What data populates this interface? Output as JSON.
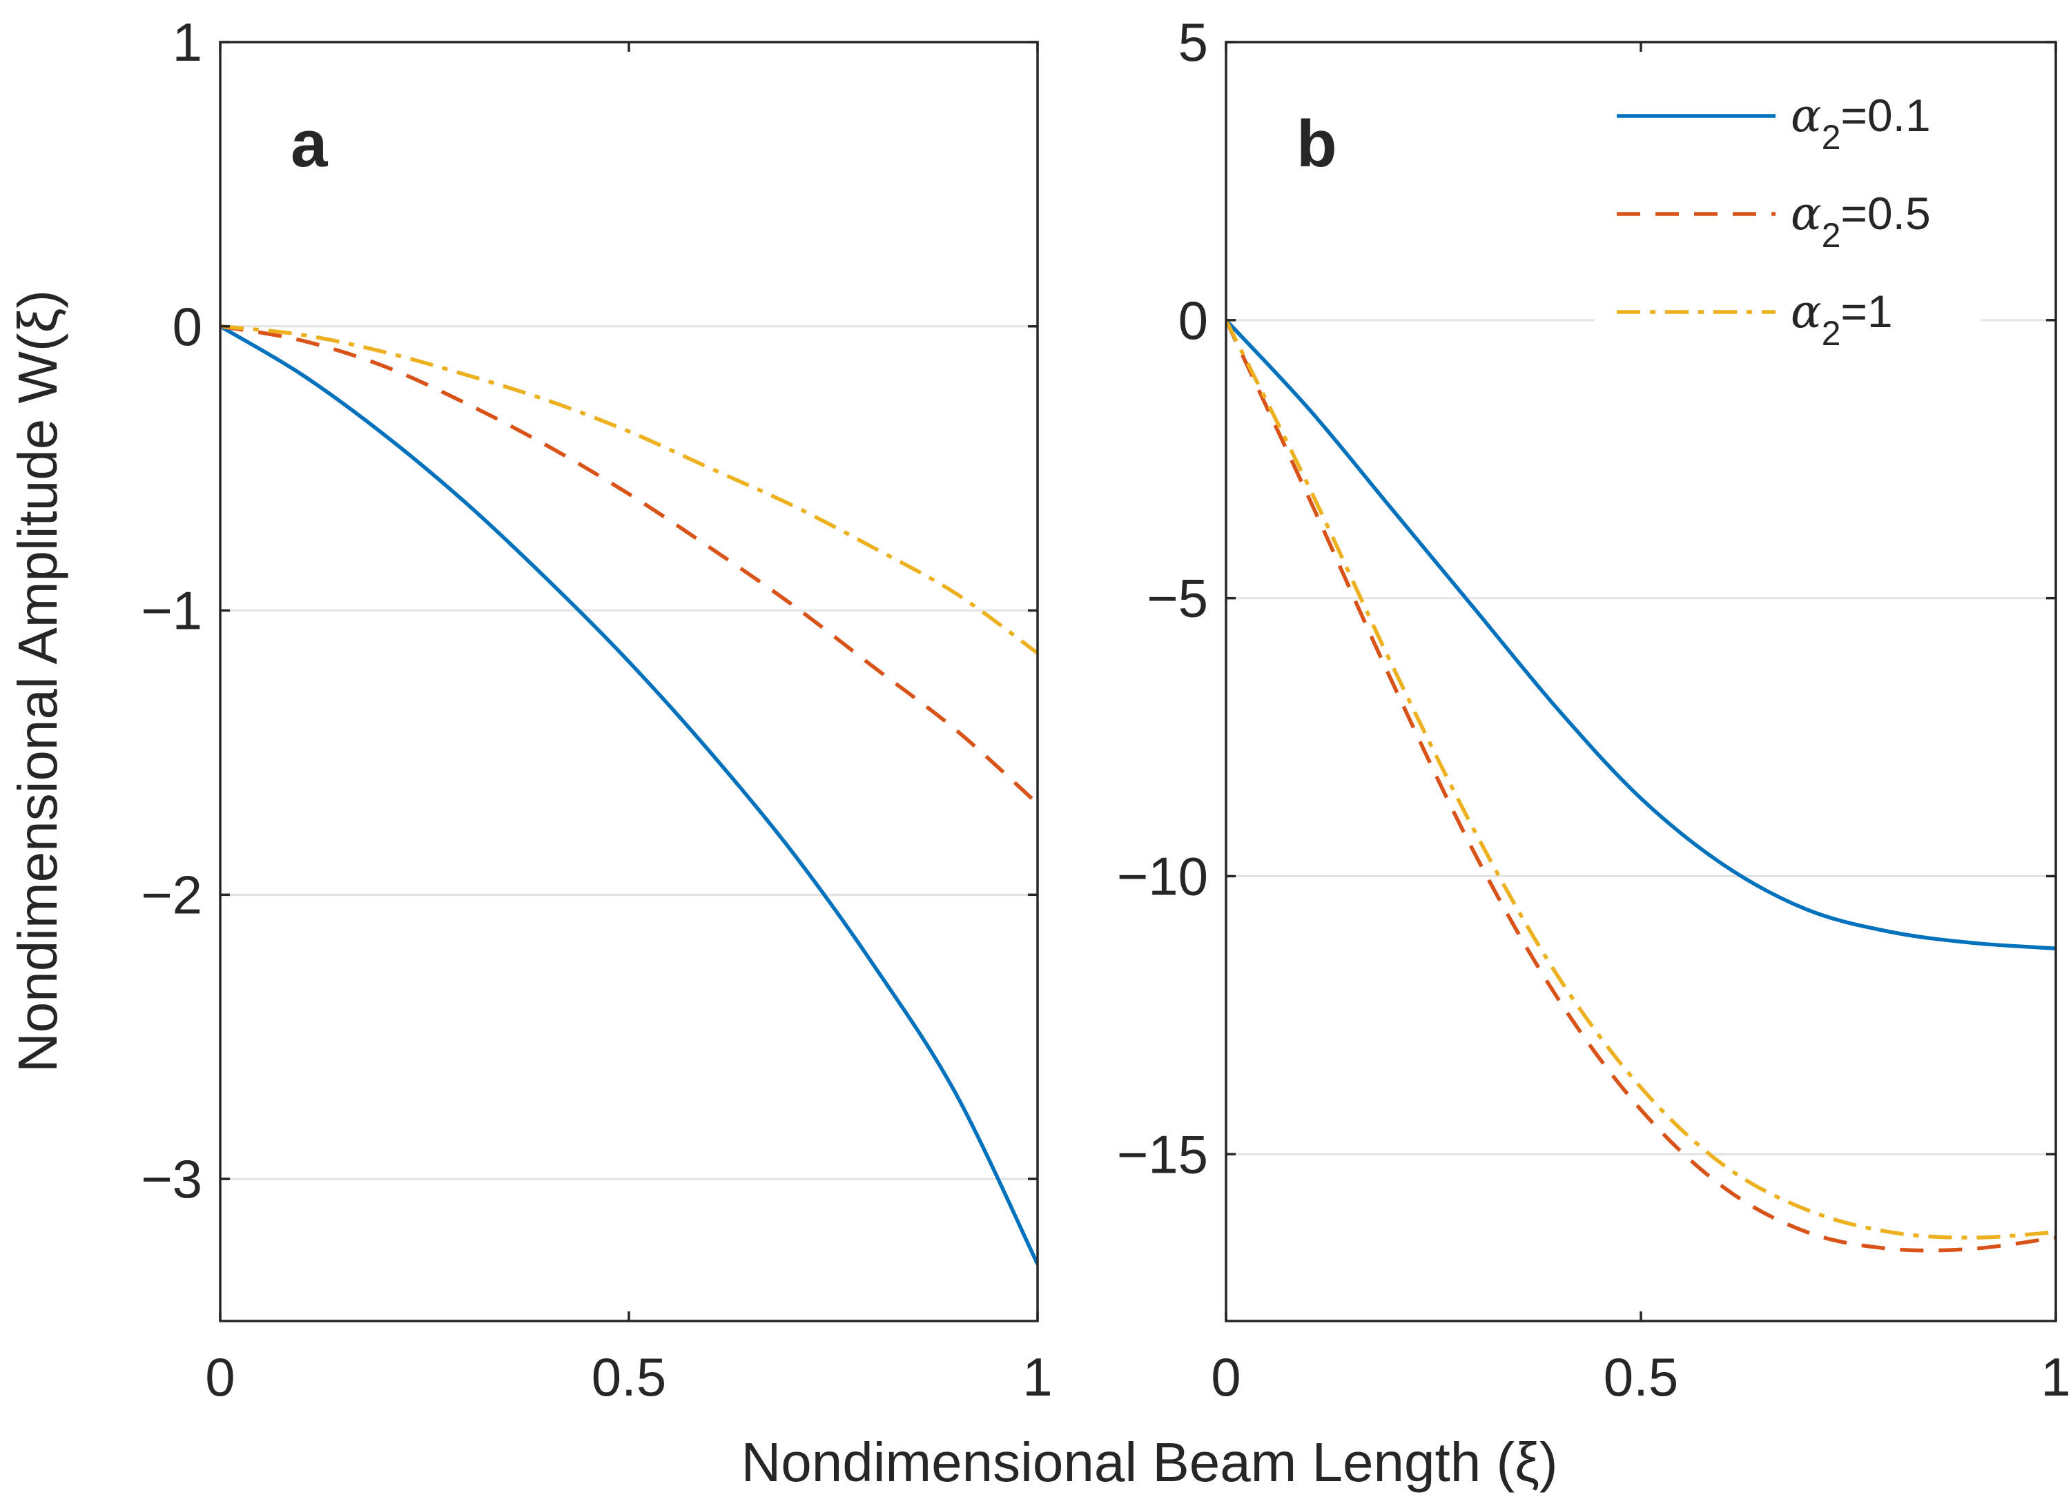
{
  "figure": {
    "ylabel": "Nondimensional Amplitude W(ξ)",
    "xlabel": "Nondimensional Beam Length (ξ)"
  },
  "legend": {
    "placement": "top-right of panel b",
    "entries": [
      {
        "symbol": "α",
        "sub": "2",
        "value": "=0.1",
        "color": "#0072BD",
        "dash": "solid"
      },
      {
        "symbol": "α",
        "sub": "2",
        "value": "=0.5",
        "color": "#D95319",
        "dash": "dashed"
      },
      {
        "symbol": "α",
        "sub": "2",
        "value": "=1",
        "color": "#EDB120",
        "dash": "dash-dot"
      }
    ]
  },
  "chart_data": [
    {
      "type": "line",
      "panel_label": "a",
      "xlim": [
        0,
        1
      ],
      "ylim": [
        -3.5,
        1
      ],
      "xticks": [
        0,
        0.5,
        1
      ],
      "xtick_labels": [
        "0",
        "0.5",
        "1"
      ],
      "yticks": [
        1,
        0,
        -1,
        -2,
        -3
      ],
      "ytick_labels": [
        "1",
        "0",
        "−1",
        "−2",
        "−3"
      ],
      "grid": "horizontal",
      "x": [
        0,
        0.1,
        0.2,
        0.3,
        0.4,
        0.5,
        0.6,
        0.7,
        0.8,
        0.9,
        1.0
      ],
      "series": [
        {
          "name": "α₂=0.1",
          "color": "#0072BD",
          "dash": "solid",
          "values": [
            0,
            -0.17,
            -0.38,
            -0.62,
            -0.89,
            -1.18,
            -1.5,
            -1.85,
            -2.25,
            -2.7,
            -3.3
          ]
        },
        {
          "name": "α₂=0.5",
          "color": "#D95319",
          "dash": "dashed",
          "values": [
            0,
            -0.05,
            -0.14,
            -0.27,
            -0.42,
            -0.59,
            -0.78,
            -0.98,
            -1.2,
            -1.42,
            -1.68
          ]
        },
        {
          "name": "α₂=1",
          "color": "#EDB120",
          "dash": "dash-dot",
          "values": [
            0,
            -0.03,
            -0.09,
            -0.17,
            -0.26,
            -0.37,
            -0.5,
            -0.63,
            -0.78,
            -0.94,
            -1.15
          ]
        }
      ]
    },
    {
      "type": "line",
      "panel_label": "b",
      "xlim": [
        0,
        1
      ],
      "ylim": [
        -18,
        5
      ],
      "xticks": [
        0,
        0.5,
        1
      ],
      "xtick_labels": [
        "0",
        "0.5",
        "1"
      ],
      "yticks": [
        5,
        0,
        -5,
        -10,
        -15
      ],
      "ytick_labels": [
        "5",
        "0",
        "−5",
        "−10",
        "−15"
      ],
      "grid": "horizontal",
      "x": [
        0,
        0.1,
        0.2,
        0.3,
        0.4,
        0.5,
        0.6,
        0.7,
        0.8,
        0.9,
        1.0
      ],
      "series": [
        {
          "name": "α₂=0.1",
          "color": "#0072BD",
          "dash": "solid",
          "values": [
            0,
            -1.6,
            -3.4,
            -5.2,
            -7.0,
            -8.6,
            -9.8,
            -10.6,
            -11.0,
            -11.2,
            -11.3
          ]
        },
        {
          "name": "α₂=0.5",
          "color": "#D95319",
          "dash": "dashed",
          "values": [
            0,
            -3.2,
            -6.5,
            -9.6,
            -12.2,
            -14.2,
            -15.6,
            -16.4,
            -16.7,
            -16.7,
            -16.5
          ]
        },
        {
          "name": "α₂=1",
          "color": "#EDB120",
          "dash": "dash-dot",
          "values": [
            0,
            -3.0,
            -6.2,
            -9.2,
            -11.8,
            -13.8,
            -15.2,
            -16.0,
            -16.4,
            -16.5,
            -16.4
          ]
        }
      ]
    }
  ]
}
